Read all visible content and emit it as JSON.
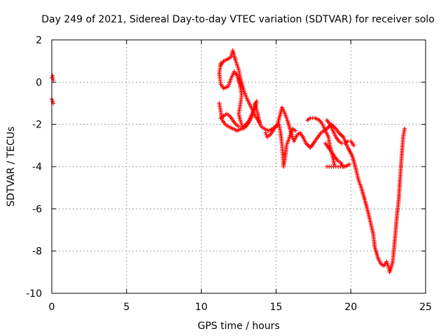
{
  "chart_data": {
    "type": "scatter",
    "title": "Day 249 of 2021, Sidereal Day-to-day VTEC variation (SDTVAR) for receiver solo",
    "xlabel": "GPS time / hours",
    "ylabel": "SDTVAR / TECUs",
    "xlim": [
      0,
      25
    ],
    "ylim": [
      -10,
      2
    ],
    "xticks": [
      0,
      5,
      10,
      15,
      20,
      25
    ],
    "yticks": [
      -10,
      -8,
      -6,
      -4,
      -2,
      0,
      2
    ],
    "grid": true,
    "marker": "+",
    "marker_color": "#ff0000",
    "series": [
      {
        "name": "SDTVAR",
        "segments": [
          [
            [
              0.0,
              0.2
            ],
            [
              0.05,
              0.3
            ],
            [
              0.1,
              0.1
            ]
          ],
          [
            [
              0.0,
              -0.8
            ],
            [
              0.05,
              -0.9
            ],
            [
              0.1,
              -1.0
            ]
          ],
          [
            [
              11.3,
              0.8
            ],
            [
              11.5,
              1.0
            ],
            [
              11.8,
              1.1
            ],
            [
              12.0,
              1.2
            ],
            [
              12.1,
              1.5
            ],
            [
              12.3,
              1.0
            ],
            [
              12.5,
              0.6
            ],
            [
              12.6,
              0.2
            ],
            [
              12.8,
              -0.3
            ],
            [
              13.0,
              -0.7
            ],
            [
              13.2,
              -1.0
            ],
            [
              13.4,
              -1.3
            ],
            [
              13.6,
              -1.6
            ],
            [
              13.8,
              -1.8
            ],
            [
              14.0,
              -2.1
            ],
            [
              14.2,
              -2.2
            ],
            [
              14.5,
              -2.3
            ],
            [
              14.8,
              -2.2
            ],
            [
              15.1,
              -2.0
            ],
            [
              15.4,
              -1.2
            ],
            [
              15.6,
              -1.5
            ],
            [
              15.8,
              -1.9
            ],
            [
              16.0,
              -2.4
            ],
            [
              16.2,
              -2.8
            ],
            [
              16.4,
              -2.5
            ],
            [
              16.6,
              -2.4
            ],
            [
              16.8,
              -2.6
            ],
            [
              17.0,
              -2.9
            ],
            [
              17.3,
              -3.1
            ],
            [
              17.6,
              -2.8
            ],
            [
              18.0,
              -2.4
            ],
            [
              18.4,
              -2.2
            ],
            [
              18.7,
              -2.0
            ],
            [
              19.0,
              -2.2
            ],
            [
              19.2,
              -2.4
            ],
            [
              19.5,
              -2.6
            ],
            [
              19.8,
              -3.1
            ],
            [
              20.1,
              -3.5
            ],
            [
              20.3,
              -4.0
            ],
            [
              20.5,
              -4.6
            ],
            [
              20.7,
              -5.0
            ],
            [
              20.9,
              -5.5
            ],
            [
              21.1,
              -6.0
            ],
            [
              21.3,
              -6.6
            ],
            [
              21.5,
              -7.2
            ],
            [
              21.6,
              -7.8
            ],
            [
              21.8,
              -8.3
            ],
            [
              22.0,
              -8.6
            ],
            [
              22.2,
              -8.7
            ],
            [
              22.4,
              -8.5
            ],
            [
              22.5,
              -8.7
            ],
            [
              22.6,
              -9.0
            ],
            [
              22.7,
              -8.8
            ],
            [
              22.8,
              -8.5
            ],
            [
              22.9,
              -7.8
            ],
            [
              23.0,
              -7.0
            ],
            [
              23.1,
              -6.2
            ],
            [
              23.2,
              -5.6
            ],
            [
              23.3,
              -4.5
            ],
            [
              23.4,
              -3.5
            ],
            [
              23.5,
              -2.6
            ],
            [
              23.6,
              -2.2
            ]
          ],
          [
            [
              11.3,
              0.9
            ],
            [
              11.2,
              0.4
            ],
            [
              11.3,
              -0.1
            ],
            [
              11.5,
              -0.3
            ],
            [
              11.8,
              -0.2
            ],
            [
              12.0,
              0.2
            ],
            [
              12.2,
              0.5
            ],
            [
              12.4,
              0.3
            ],
            [
              12.6,
              -0.2
            ],
            [
              12.7,
              -0.6
            ],
            [
              12.6,
              -1.1
            ],
            [
              12.5,
              -1.5
            ],
            [
              12.6,
              -1.8
            ],
            [
              12.8,
              -2.2
            ],
            [
              13.0,
              -2.1
            ],
            [
              13.2,
              -1.9
            ],
            [
              13.4,
              -1.6
            ],
            [
              13.5,
              -1.3
            ],
            [
              13.6,
              -1.0
            ],
            [
              13.7,
              -1.3
            ],
            [
              13.8,
              -1.6
            ],
            [
              13.9,
              -1.9
            ]
          ],
          [
            [
              11.2,
              -1.0
            ],
            [
              11.3,
              -1.4
            ],
            [
              11.4,
              -1.8
            ],
            [
              11.6,
              -2.0
            ],
            [
              11.8,
              -2.1
            ],
            [
              12.1,
              -2.2
            ],
            [
              12.4,
              -2.3
            ],
            [
              12.7,
              -2.2
            ],
            [
              13.0,
              -2.0
            ],
            [
              13.2,
              -1.8
            ],
            [
              13.4,
              -1.5
            ],
            [
              13.6,
              -1.2
            ],
            [
              13.7,
              -0.9
            ]
          ],
          [
            [
              11.3,
              -1.7
            ],
            [
              11.5,
              -1.6
            ],
            [
              11.7,
              -1.5
            ],
            [
              11.9,
              -1.6
            ],
            [
              12.1,
              -1.8
            ],
            [
              12.3,
              -2.0
            ],
            [
              12.5,
              -2.1
            ]
          ],
          [
            [
              14.3,
              -2.4
            ],
            [
              14.4,
              -2.6
            ],
            [
              14.6,
              -2.5
            ],
            [
              14.8,
              -2.3
            ],
            [
              15.0,
              -2.1
            ],
            [
              15.2,
              -2.0
            ],
            [
              15.3,
              -2.4
            ],
            [
              15.4,
              -3.0
            ],
            [
              15.45,
              -3.5
            ],
            [
              15.5,
              -4.0
            ],
            [
              15.6,
              -3.6
            ],
            [
              15.7,
              -3.0
            ],
            [
              15.9,
              -2.6
            ],
            [
              16.1,
              -2.2
            ],
            [
              16.3,
              -2.3
            ]
          ],
          [
            [
              17.1,
              -1.8
            ],
            [
              17.3,
              -1.7
            ],
            [
              17.6,
              -1.7
            ],
            [
              17.9,
              -1.8
            ],
            [
              18.1,
              -2.0
            ],
            [
              18.3,
              -2.3
            ],
            [
              18.5,
              -2.6
            ],
            [
              18.6,
              -3.0
            ],
            [
              18.7,
              -3.3
            ],
            [
              18.8,
              -3.6
            ],
            [
              18.9,
              -3.9
            ]
          ],
          [
            [
              18.3,
              -2.9
            ],
            [
              18.5,
              -3.1
            ],
            [
              18.7,
              -3.3
            ],
            [
              18.9,
              -3.5
            ],
            [
              19.1,
              -3.7
            ],
            [
              19.3,
              -3.8
            ],
            [
              19.5,
              -4.0
            ]
          ],
          [
            [
              18.4,
              -4.0
            ],
            [
              18.7,
              -4.0
            ],
            [
              19.0,
              -4.0
            ],
            [
              19.3,
              -4.0
            ],
            [
              19.6,
              -4.0
            ],
            [
              19.9,
              -3.9
            ]
          ],
          [
            [
              18.4,
              -1.8
            ],
            [
              18.6,
              -2.0
            ],
            [
              18.8,
              -2.3
            ],
            [
              19.0,
              -2.6
            ],
            [
              19.2,
              -2.8
            ],
            [
              19.4,
              -2.9
            ],
            [
              19.6,
              -2.9
            ],
            [
              19.8,
              -2.8
            ],
            [
              20.0,
              -2.8
            ],
            [
              20.2,
              -3.0
            ]
          ]
        ]
      }
    ]
  }
}
